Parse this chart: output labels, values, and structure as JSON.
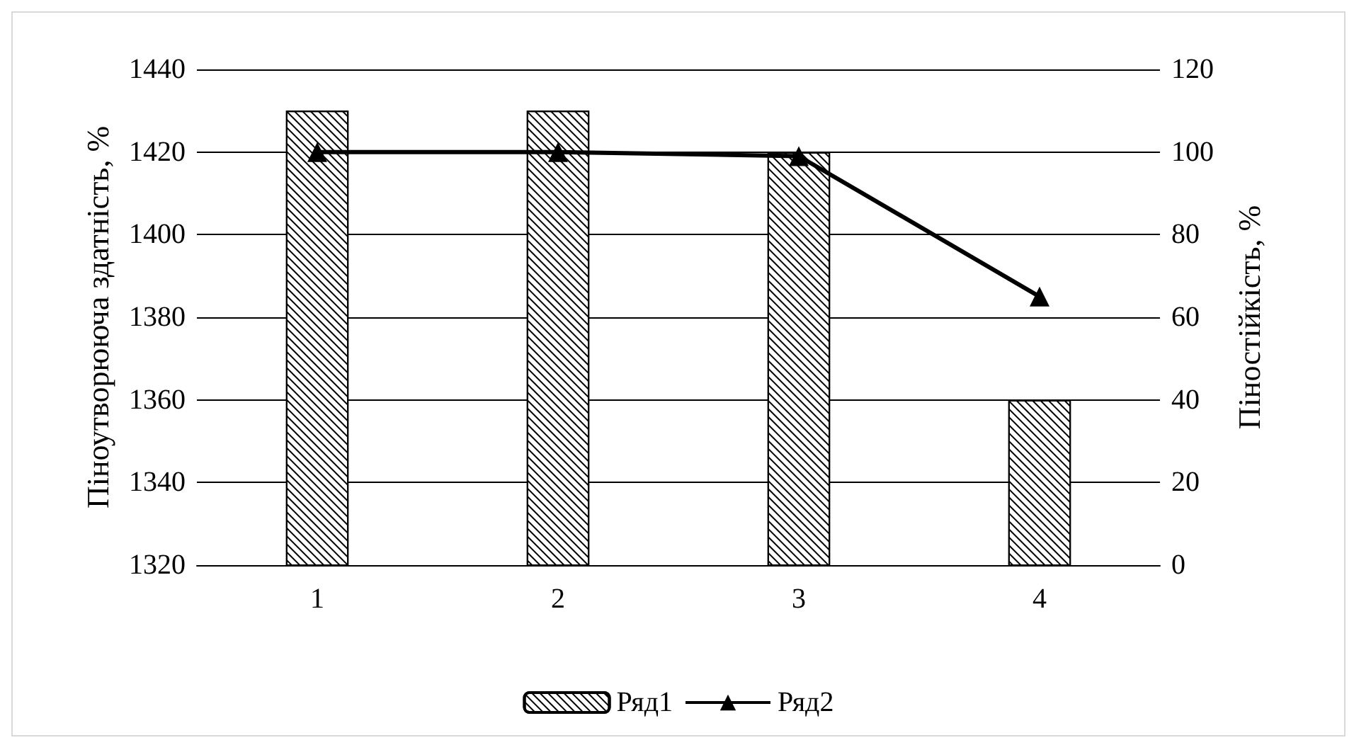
{
  "chart_data": {
    "type": "bar",
    "ylabel": "Піноутворююча здатність, %",
    "y2label": "Піностійкість, %",
    "categories": [
      "1",
      "2",
      "3",
      "4"
    ],
    "series": [
      {
        "name": "Ряд1",
        "color": "#000000",
        "values": [
          1430,
          1430,
          1420,
          1360
        ]
      },
      {
        "name": "Ряд2",
        "type": "line",
        "axis": "y2",
        "color": "#000000",
        "marker": "triangle",
        "values": [
          100,
          100,
          99,
          65
        ]
      }
    ],
    "ylim": [
      1320,
      1440
    ],
    "yticks": [
      1320,
      1340,
      1360,
      1380,
      1400,
      1420,
      1440
    ],
    "y2lim": [
      0,
      120
    ],
    "y2ticks": [
      0,
      20,
      40,
      60,
      80,
      100,
      120
    ],
    "grid": "y",
    "legend": "bottom"
  }
}
